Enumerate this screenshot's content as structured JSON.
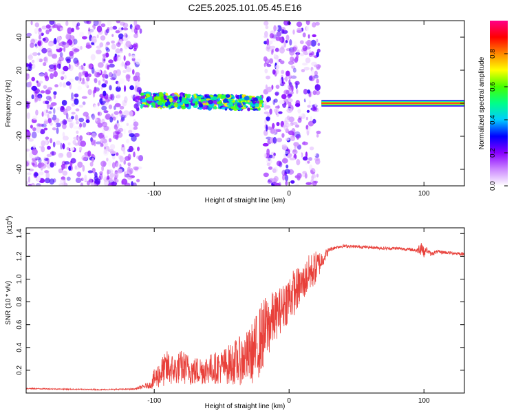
{
  "title": "C2E5.2025.101.05.45.E16",
  "chart_data": [
    {
      "type": "heatmap",
      "xlabel": "Height of straight line (km)",
      "ylabel": "Frequency (Hz)",
      "xlim": [
        -195,
        130
      ],
      "ylim": [
        -50,
        50
      ],
      "x_ticks": [
        -100,
        0,
        100
      ],
      "y_ticks": [
        -40,
        -20,
        0,
        20,
        40
      ],
      "grid": false,
      "colorbar": {
        "label": "Normalized spectral amplitude",
        "range": [
          0,
          1
        ],
        "ticks": [
          "0.0",
          "0.2",
          "0.4",
          "0.6",
          "0.8"
        ],
        "colors": [
          "#ffffff",
          "#cc88ff",
          "#8800ff",
          "#0000ff",
          "#00ccff",
          "#00ff88",
          "#44ff00",
          "#ffff00",
          "#ff8800",
          "#ff0000",
          "#ff0088"
        ]
      },
      "regions": [
        {
          "x": [
            -195,
            -110
          ],
          "kind": "noise",
          "amplitude": 0.15
        },
        {
          "x": [
            -110,
            -20
          ],
          "kind": "band",
          "center_hz": [
            2,
            0
          ],
          "width_hz": 8,
          "amplitude": 0.45
        },
        {
          "x": [
            -18,
            22
          ],
          "kind": "noise",
          "amplitude": 0.15
        },
        {
          "x": [
            24,
            130
          ],
          "kind": "line",
          "center_hz": 0,
          "width_hz": 4,
          "amplitude": 0.95
        }
      ]
    },
    {
      "type": "line",
      "xlabel": "Height of straight line (km)",
      "ylabel": "SNR (10 * v/v)",
      "y_multiplier": "(x10",
      "y_multiplier_exp": "4",
      "y_multiplier_close": ")",
      "xlim": [
        -195,
        130
      ],
      "ylim": [
        0,
        14500
      ],
      "x_ticks": [
        -100,
        0,
        100
      ],
      "y_ticks": [
        "0.2",
        "0.4",
        "0.6",
        "0.8",
        "1.0",
        "1.2",
        "1.4"
      ],
      "y_tick_values": [
        2000,
        4000,
        6000,
        8000,
        10000,
        12000,
        14000
      ],
      "color": "#e8403a",
      "grid": false,
      "series": [
        {
          "x": [
            -195,
            -170,
            -140,
            -115,
            -103,
            -100,
            -95,
            -90,
            -85,
            -80,
            -70,
            -60,
            -50,
            -40,
            -35,
            -30,
            -25,
            -20,
            -15,
            -10,
            -5,
            0,
            5,
            10,
            15,
            20,
            25,
            30,
            35,
            40,
            50,
            60,
            70,
            80,
            90,
            95,
            98,
            100,
            102,
            105,
            110,
            120,
            130
          ],
          "y": [
            400,
            350,
            300,
            350,
            700,
            1200,
            1800,
            2200,
            2000,
            2300,
            1900,
            2100,
            2300,
            2700,
            2900,
            3200,
            3800,
            5000,
            6000,
            6800,
            7500,
            8400,
            9000,
            9600,
            10500,
            11000,
            11800,
            12600,
            12800,
            12900,
            12850,
            12800,
            12700,
            12700,
            12600,
            12500,
            12900,
            12300,
            12600,
            12200,
            12400,
            12300,
            12200
          ],
          "noise_amplitude": [
            50,
            50,
            50,
            60,
            300,
            900,
            1300,
            1600,
            1300,
            1500,
            1300,
            1300,
            1500,
            2000,
            2200,
            2400,
            3000,
            3200,
            2800,
            2200,
            2000,
            2200,
            2000,
            1600,
            1700,
            1500,
            700,
            200,
            150,
            150,
            130,
            130,
            140,
            140,
            140,
            200,
            800,
            400,
            250,
            200,
            150,
            150,
            150
          ]
        }
      ]
    }
  ]
}
